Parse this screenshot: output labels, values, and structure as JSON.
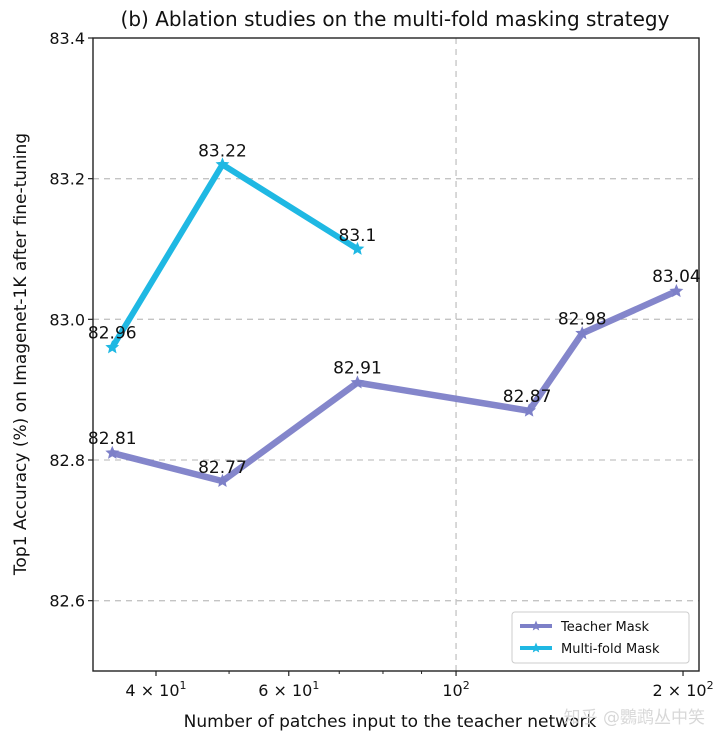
{
  "chart_data": {
    "type": "line",
    "title": "(b) Ablation studies on the multi-fold masking strategy",
    "xlabel": "Number of patches input to the teacher network",
    "ylabel": "Top1 Accuracy (%) on Imagenet-1K after fine-tuning",
    "xscale": "log",
    "xlim": [
      33,
      210
    ],
    "ylim": [
      82.5,
      83.4
    ],
    "grid": true,
    "legend_position": "lower-right",
    "yticks": [
      {
        "value": 82.6,
        "label": "82.6"
      },
      {
        "value": 82.8,
        "label": "82.8"
      },
      {
        "value": 83.0,
        "label": "83.0"
      },
      {
        "value": 83.2,
        "label": "83.2"
      },
      {
        "value": 83.4,
        "label": "83.4"
      }
    ],
    "xticks": [
      {
        "value": 40,
        "base": "4 × 10",
        "exp": "1",
        "gridline": false
      },
      {
        "value": 60,
        "base": "6 × 10",
        "exp": "1",
        "gridline": false
      },
      {
        "value": 100,
        "base": "10",
        "exp": "2",
        "gridline": true
      },
      {
        "value": 200,
        "base": "2 × 10",
        "exp": "2",
        "gridline": false
      }
    ],
    "series": [
      {
        "name": "Teacher Mask",
        "color": "#7d80c8",
        "x": [
          35,
          49,
          74,
          125,
          147,
          196
        ],
        "values": [
          82.81,
          82.77,
          82.91,
          82.87,
          82.98,
          83.04
        ],
        "labels": [
          "82.81",
          "82.77",
          "82.91",
          "82.87",
          "82.98",
          "83.04"
        ]
      },
      {
        "name": "Multi-fold Mask",
        "color": "#1fb8e3",
        "x": [
          35,
          49,
          74
        ],
        "values": [
          82.96,
          83.22,
          83.1
        ],
        "labels": [
          "82.96",
          "83.22",
          "83.1"
        ]
      }
    ]
  },
  "watermark": "知乎 @鸚鹉丛中笑"
}
